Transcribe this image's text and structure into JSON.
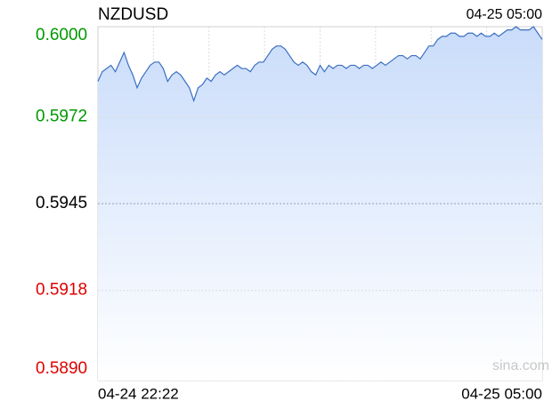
{
  "chart_data": {
    "type": "area",
    "title": "NZDUSD",
    "time": "04-25 05:00",
    "watermark": "sina.com",
    "color": "#3b6fc2",
    "fill_color": "#c9dcfa",
    "ylim": [
      0.589,
      0.6
    ],
    "yticks": [
      {
        "value": 0.6,
        "label": "0.6000"
      },
      {
        "value": 0.5972,
        "label": "0.5972"
      },
      {
        "value": 0.5945,
        "label": "0.5945"
      },
      {
        "value": 0.5918,
        "label": "0.5918"
      },
      {
        "value": 0.589,
        "label": "0.5890"
      }
    ],
    "ytick_colors": [
      "#009900",
      "#009900",
      "#000000",
      "#e00000",
      "#e00000"
    ],
    "grid": true,
    "categories": [
      "04-24 22:22",
      null,
      null,
      null,
      null,
      null,
      null,
      null,
      null,
      null,
      null,
      null,
      null,
      null,
      null,
      null,
      null,
      null,
      null,
      null,
      null,
      null,
      null,
      null,
      null,
      null,
      null,
      null,
      null,
      null,
      null,
      null,
      null,
      null,
      null,
      null,
      null,
      null,
      null,
      null,
      null,
      null,
      null,
      null,
      null,
      null,
      null,
      null,
      null,
      null,
      null,
      null,
      null,
      null,
      null,
      null,
      null,
      null,
      null,
      null,
      null,
      null,
      null,
      null,
      null,
      null,
      null,
      null,
      null,
      null,
      null,
      null,
      null,
      null,
      null,
      null,
      null,
      null,
      null,
      null,
      null,
      null,
      null,
      null,
      null,
      null,
      null,
      null,
      null,
      null,
      null,
      null,
      null,
      null,
      null,
      null,
      null,
      null,
      null,
      null,
      null,
      null,
      "04-25 05:00"
    ],
    "values": [
      0.5983,
      0.5986,
      0.5987,
      0.5988,
      0.5986,
      0.5989,
      0.5992,
      0.5988,
      0.5985,
      0.5981,
      0.5984,
      0.5986,
      0.5988,
      0.5989,
      0.5989,
      0.5987,
      0.5983,
      0.5985,
      0.5986,
      0.5985,
      0.5983,
      0.5981,
      0.5977,
      0.5981,
      0.5982,
      0.5984,
      0.5983,
      0.5985,
      0.5986,
      0.5985,
      0.5986,
      0.5987,
      0.5988,
      0.5987,
      0.5987,
      0.5986,
      0.5988,
      0.5989,
      0.5989,
      0.5991,
      0.5993,
      0.5994,
      0.5994,
      0.5993,
      0.5991,
      0.5989,
      0.5988,
      0.5989,
      0.5988,
      0.5986,
      0.5985,
      0.5988,
      0.5986,
      0.5988,
      0.5987,
      0.5988,
      0.5988,
      0.5987,
      0.5988,
      0.5988,
      0.5987,
      0.5988,
      0.5988,
      0.5987,
      0.5988,
      0.5989,
      0.5988,
      0.5989,
      0.599,
      0.5991,
      0.5991,
      0.599,
      0.5991,
      0.5991,
      0.599,
      0.5992,
      0.5994,
      0.5994,
      0.5996,
      0.5997,
      0.5997,
      0.5998,
      0.5998,
      0.5997,
      0.5997,
      0.5998,
      0.5998,
      0.5997,
      0.5998,
      0.5997,
      0.5997,
      0.5998,
      0.5997,
      0.5998,
      0.5999,
      0.5999,
      0.6,
      0.5999,
      0.5999,
      0.5999,
      0.6,
      0.5998,
      0.5996
    ]
  }
}
